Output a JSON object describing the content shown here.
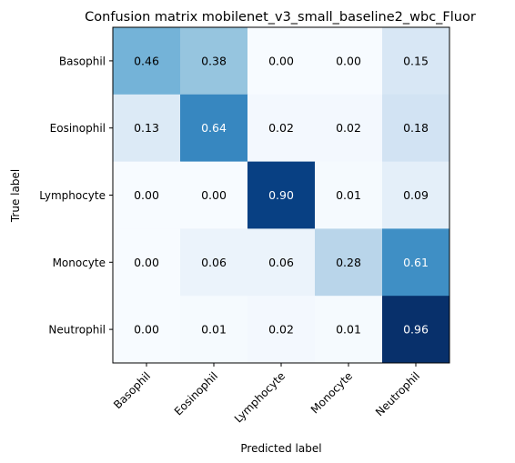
{
  "chart_data": {
    "type": "heatmap",
    "title": "Confusion matrix mobilenet_v3_small_baseline2_wbc_Fluor",
    "xlabel": "Predicted label",
    "ylabel": "True label",
    "x_categories": [
      "Basophil",
      "Eosinophil",
      "Lymphocyte",
      "Monocyte",
      "Neutrophil"
    ],
    "y_categories": [
      "Basophil",
      "Eosinophil",
      "Lymphocyte",
      "Monocyte",
      "Neutrophil"
    ],
    "values": [
      [
        0.46,
        0.38,
        0.0,
        0.0,
        0.15
      ],
      [
        0.13,
        0.64,
        0.02,
        0.02,
        0.18
      ],
      [
        0.0,
        0.0,
        0.9,
        0.01,
        0.09
      ],
      [
        0.0,
        0.06,
        0.06,
        0.28,
        0.61
      ],
      [
        0.0,
        0.01,
        0.02,
        0.01,
        0.96
      ]
    ],
    "value_format": "0.00",
    "colormap": "Blues",
    "vmin": 0.0,
    "vmax": 0.96,
    "grid": false
  }
}
